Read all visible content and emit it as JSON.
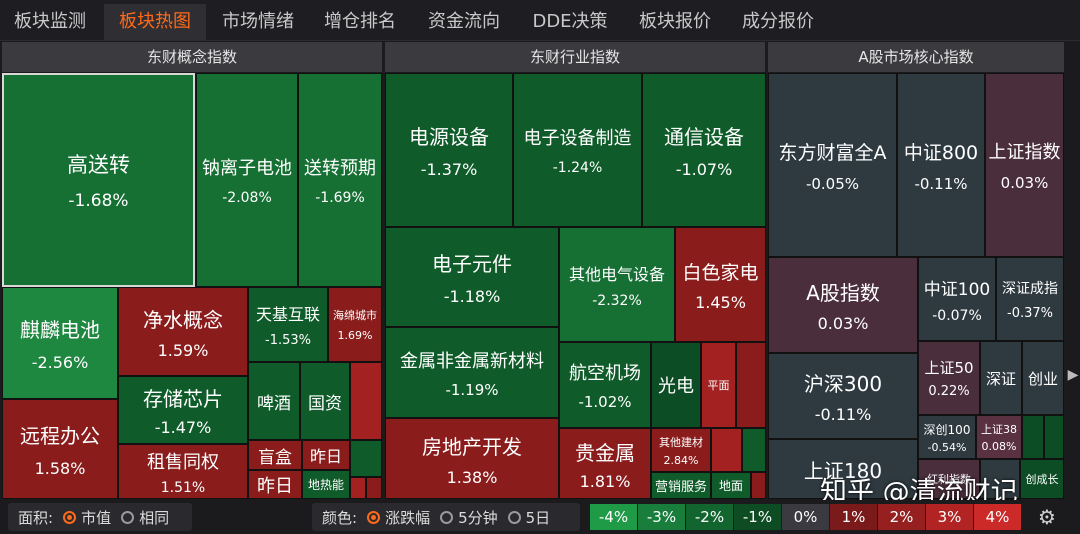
{
  "tabs": [
    "板块监测",
    "板块热图",
    "市场情绪",
    "增仓排名",
    "资金流向",
    "DDE决策",
    "板块报价",
    "成分报价"
  ],
  "active_tab": "板块热图",
  "panels": [
    {
      "title": "东财概念指数"
    },
    {
      "title": "东财行业指数"
    },
    {
      "title": "A股市场核心指数"
    }
  ],
  "tiles": [
    {
      "name": "高送转",
      "pct": "-1.68%"
    },
    {
      "name": "钠离子电池",
      "pct": "-2.08%"
    },
    {
      "name": "送转预期",
      "pct": "-1.69%"
    },
    {
      "name": "麒麟电池",
      "pct": "-2.56%"
    },
    {
      "name": "净水概念",
      "pct": "1.59%"
    },
    {
      "name": "天基互联",
      "pct": "-1.53%"
    },
    {
      "name": "海绵城市",
      "pct": "1.69%"
    },
    {
      "name": "存储芯片",
      "pct": "-1.47%"
    },
    {
      "name": "啤酒",
      "pct": ""
    },
    {
      "name": "国资",
      "pct": ""
    },
    {
      "name": "远程办公",
      "pct": "1.58%"
    },
    {
      "name": "租售同权",
      "pct": "1.51%"
    },
    {
      "name": "盲盒",
      "pct": ""
    },
    {
      "name": "昨日",
      "pct": ""
    },
    {
      "name": "昨日",
      "pct": ""
    },
    {
      "name": "地热能",
      "pct": ""
    },
    {
      "name": "电源设备",
      "pct": "-1.37%"
    },
    {
      "name": "电子设备制造",
      "pct": "-1.24%"
    },
    {
      "name": "通信设备",
      "pct": "-1.07%"
    },
    {
      "name": "电子元件",
      "pct": "-1.18%"
    },
    {
      "name": "其他电气设备",
      "pct": "-2.32%"
    },
    {
      "name": "白色家电",
      "pct": "1.45%"
    },
    {
      "name": "金属非金属新材料",
      "pct": "-1.19%"
    },
    {
      "name": "航空机场",
      "pct": "-1.02%"
    },
    {
      "name": "光电",
      "pct": ""
    },
    {
      "name": "平面",
      "pct": ""
    },
    {
      "name": "房地产开发",
      "pct": "1.38%"
    },
    {
      "name": "贵金属",
      "pct": "1.81%"
    },
    {
      "name": "其他建材",
      "pct": "2.84%"
    },
    {
      "name": "营销服务",
      "pct": ""
    },
    {
      "name": "地面",
      "pct": ""
    },
    {
      "name": "东方财富全A",
      "pct": "-0.05%"
    },
    {
      "name": "中证800",
      "pct": "-0.11%"
    },
    {
      "name": "上证指数",
      "pct": "0.03%"
    },
    {
      "name": "A股指数",
      "pct": "0.03%"
    },
    {
      "name": "中证100",
      "pct": "-0.07%"
    },
    {
      "name": "深证成指",
      "pct": "-0.37%"
    },
    {
      "name": "沪深300",
      "pct": "-0.11%"
    },
    {
      "name": "上证50",
      "pct": "0.22%"
    },
    {
      "name": "深证",
      "pct": ""
    },
    {
      "name": "创业",
      "pct": ""
    },
    {
      "name": "上证180",
      "pct": ""
    },
    {
      "name": "深创100",
      "pct": "-0.54%"
    },
    {
      "name": "上证38",
      "pct": "0.08%"
    },
    {
      "name": "红利指数",
      "pct": ""
    },
    {
      "name": "创成长",
      "pct": ""
    }
  ],
  "controls": {
    "area_label": "面积:",
    "area_options": [
      "市值",
      "相同"
    ],
    "area_selected": "市值",
    "color_label": "颜色:",
    "color_options": [
      "涨跌幅",
      "5分钟",
      "5日"
    ],
    "color_selected": "涨跌幅"
  },
  "legend": [
    "-4%",
    "-3%",
    "-2%",
    "-1%",
    "0%",
    "1%",
    "2%",
    "3%",
    "4%"
  ],
  "legend_colors": [
    "#1f9a47",
    "#197e3b",
    "#13652f",
    "#0e4c24",
    "#3a3a40",
    "#7a1a1a",
    "#961f1f",
    "#b22424",
    "#cc2929"
  ],
  "watermark": "知乎 @清流财记",
  "icons": {
    "settings": "gear-icon",
    "scroll": "chevron-right-icon"
  }
}
